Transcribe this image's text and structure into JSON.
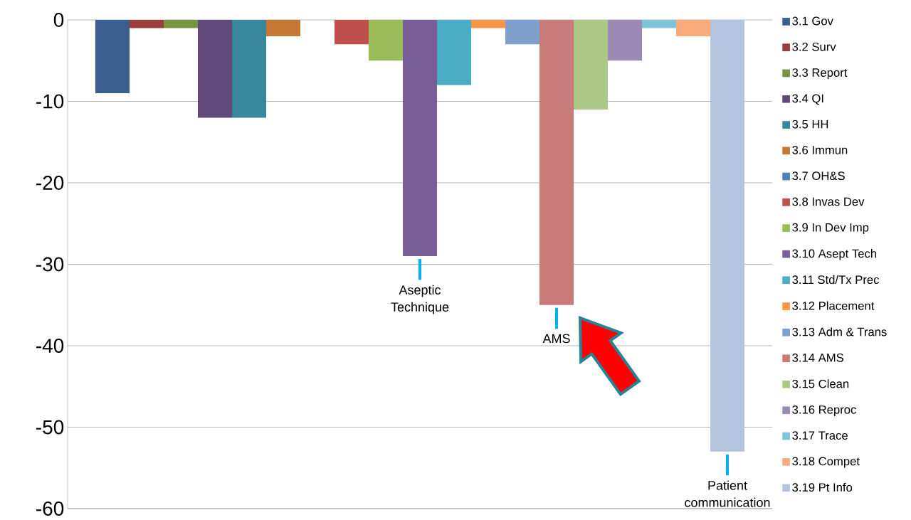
{
  "chart_data": {
    "type": "bar",
    "categories": [
      null
    ],
    "series": [
      {
        "name": "3.1 Gov",
        "color": "#3a5f8f",
        "values": [
          -9
        ]
      },
      {
        "name": "3.2 Surv",
        "color": "#9b3d3a",
        "values": [
          -1
        ]
      },
      {
        "name": "3.3 Report",
        "color": "#789440",
        "values": [
          -1
        ]
      },
      {
        "name": "3.4 QI",
        "color": "#61497a",
        "values": [
          -12
        ]
      },
      {
        "name": "3.5 HH",
        "color": "#38879a",
        "values": [
          -12
        ]
      },
      {
        "name": "3.6 Immun",
        "color": "#c57835",
        "values": [
          -2
        ]
      },
      {
        "name": "3.7 OH&S",
        "color": "#4f81bd",
        "values": [
          0
        ]
      },
      {
        "name": "3.8 Invas Dev",
        "color": "#c0504d",
        "values": [
          -3
        ]
      },
      {
        "name": "3.9 In Dev Imp",
        "color": "#9bbb59",
        "values": [
          -5
        ]
      },
      {
        "name": "3.10 Asept Tech",
        "color": "#7a5e98",
        "values": [
          -29
        ]
      },
      {
        "name": "3.11 Std/Tx Prec",
        "color": "#4bacc6",
        "values": [
          -8
        ]
      },
      {
        "name": "3.12 Placement",
        "color": "#f79646",
        "values": [
          -1
        ]
      },
      {
        "name": "3.13 Adm & Trans",
        "color": "#7f9fcc",
        "values": [
          -3
        ]
      },
      {
        "name": "3.14 AMS",
        "color": "#c97b7a",
        "values": [
          -35
        ]
      },
      {
        "name": "3.15 Clean",
        "color": "#adc886",
        "values": [
          -11
        ]
      },
      {
        "name": "3.16 Reproc",
        "color": "#9c8ab4",
        "values": [
          -5
        ]
      },
      {
        "name": "3.17 Trace",
        "color": "#7fc4d7",
        "values": [
          -1
        ]
      },
      {
        "name": "3.18 Compet",
        "color": "#f9ab7b",
        "values": [
          -2
        ]
      },
      {
        "name": "3.19 Pt Info",
        "color": "#b4c3de",
        "values": [
          -53
        ]
      }
    ],
    "ylim": [
      -60,
      0
    ],
    "yticks": [
      -60,
      -50,
      -40,
      -30,
      -20,
      -10,
      0
    ],
    "grid": "y",
    "legend": "right",
    "tick_labels": "y",
    "annotations": [
      {
        "text": "Aseptic Technique",
        "y": -29
      },
      {
        "text": "AMS",
        "y": -35
      },
      {
        "text": "Patient communication",
        "y": -53
      }
    ]
  }
}
